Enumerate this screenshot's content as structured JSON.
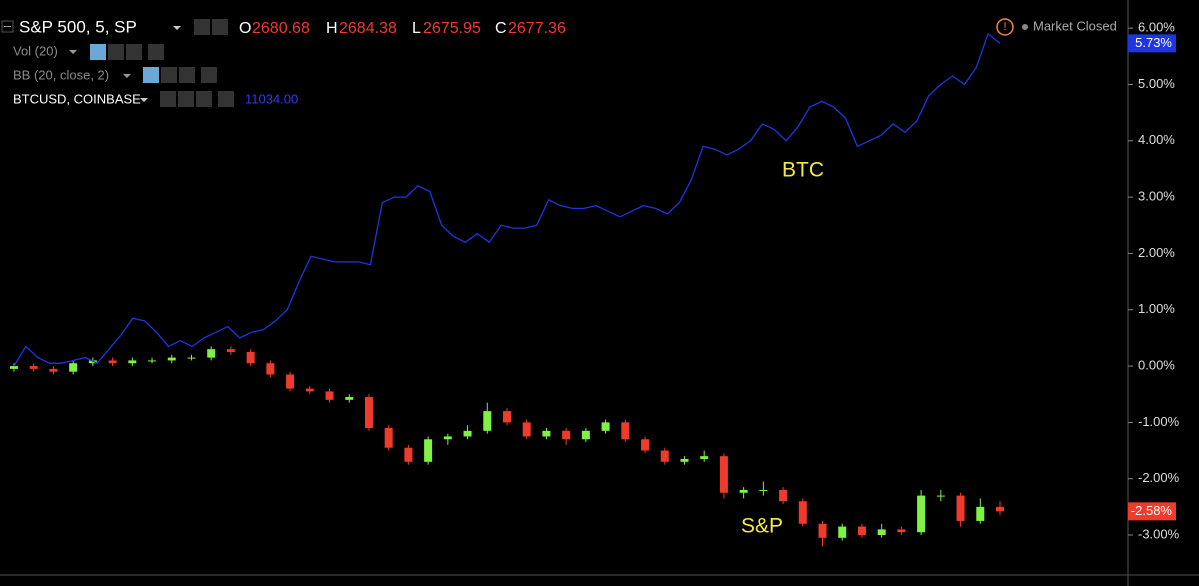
{
  "header": {
    "symbol": "S&P 500, 5, SP",
    "open_label": "O",
    "open": "2680.68",
    "high_label": "H",
    "high": "2684.38",
    "low_label": "L",
    "low": "2675.95",
    "close_label": "C",
    "close": "2677.36",
    "vol": "Vol (20)",
    "bb": "BB (20, close, 2)",
    "compare": "BTCUSD, COINBASE",
    "compare_value": "11034.00",
    "status": "Market Closed"
  },
  "chart_data": {
    "type": "candlestick",
    "ylim": [
      -3.71,
      6.5
    ],
    "yticks": [
      {
        "value": 6,
        "label": "6.00%"
      },
      {
        "value": 5,
        "label": "5.00%"
      },
      {
        "value": 4,
        "label": "4.00%"
      },
      {
        "value": 3,
        "label": "3.00%"
      },
      {
        "value": 2,
        "label": "2.00%"
      },
      {
        "value": 1,
        "label": "1.00%"
      },
      {
        "value": 0,
        "label": "0.00%"
      },
      {
        "value": -1,
        "label": "-1.00%"
      },
      {
        "value": -2,
        "label": "-2.00%"
      },
      {
        "value": -3,
        "label": "-3.00%"
      }
    ],
    "candles": {
      "up_color": "#7ff243",
      "down_color": "#ef3b2c",
      "open": [
        -0.05,
        0.0,
        -0.05,
        -0.1,
        0.05,
        0.1,
        0.05,
        0.1,
        0.1,
        0.15,
        0.15,
        0.3,
        0.25,
        0.05,
        -0.15,
        -0.4,
        -0.45,
        -0.6,
        -0.55,
        -1.1,
        -1.45,
        -1.7,
        -1.3,
        -1.25,
        -1.15,
        -0.8,
        -1.0,
        -1.25,
        -1.15,
        -1.3,
        -1.15,
        -1.0,
        -1.3,
        -1.5,
        -1.7,
        -1.65,
        -1.6,
        -2.25,
        -2.2,
        -2.2,
        -2.4,
        -2.8,
        -3.05,
        -2.85,
        -3.0,
        -2.9,
        -2.95,
        -2.3,
        -2.3,
        -2.75,
        -2.5
      ],
      "high": [
        0.05,
        0.05,
        0,
        0.1,
        0.15,
        0.15,
        0.15,
        0.15,
        0.2,
        0.2,
        0.35,
        0.35,
        0.3,
        0.1,
        -0.1,
        -0.35,
        -0.4,
        -0.5,
        -0.5,
        -1.05,
        -1.4,
        -1.25,
        -1.2,
        -1.05,
        -0.65,
        -0.75,
        -0.95,
        -1.1,
        -1.1,
        -1.1,
        -0.95,
        -0.95,
        -1.25,
        -1.45,
        -1.6,
        -1.5,
        -1.55,
        -2.15,
        -2.05,
        -2.15,
        -2.35,
        -2.75,
        -2.8,
        -2.8,
        -2.8,
        -2.85,
        -2.2,
        -2.2,
        -2.25,
        -2.35,
        -2.4
      ],
      "low": [
        -0.1,
        -0.1,
        -0.15,
        -0.15,
        0,
        0,
        0,
        0.05,
        0.05,
        0.1,
        0.1,
        0.2,
        0,
        -0.2,
        -0.45,
        -0.5,
        -0.65,
        -0.65,
        -1.15,
        -1.5,
        -1.75,
        -1.75,
        -1.4,
        -1.3,
        -1.2,
        -1.05,
        -1.3,
        -1.3,
        -1.4,
        -1.35,
        -1.2,
        -1.35,
        -1.55,
        -1.75,
        -1.75,
        -1.7,
        -2.35,
        -2.35,
        -2.3,
        -2.45,
        -2.85,
        -3.2,
        -3.1,
        -3.05,
        -3.05,
        -3.0,
        -3.0,
        -2.4,
        -2.85,
        -2.8,
        -2.65
      ],
      "close": [
        0.0,
        -0.05,
        -0.1,
        0.05,
        0.1,
        0.05,
        0.1,
        0.1,
        0.15,
        0.15,
        0.3,
        0.25,
        0.05,
        -0.15,
        -0.4,
        -0.45,
        -0.6,
        -0.55,
        -1.1,
        -1.45,
        -1.7,
        -1.3,
        -1.25,
        -1.15,
        -0.8,
        -1.0,
        -1.25,
        -1.15,
        -1.3,
        -1.15,
        -1.0,
        -1.3,
        -1.5,
        -1.7,
        -1.65,
        -1.6,
        -2.25,
        -2.2,
        -2.2,
        -2.4,
        -2.8,
        -3.05,
        -2.85,
        -3.0,
        -2.9,
        -2.95,
        -2.3,
        -2.3,
        -2.75,
        -2.5,
        -2.58
      ]
    },
    "line": {
      "color": "#1f35e0",
      "values": [
        0.0,
        0.35,
        0.15,
        0.05,
        0.05,
        0.1,
        0.15,
        0.05,
        0.3,
        0.55,
        0.85,
        0.8,
        0.6,
        0.35,
        0.45,
        0.35,
        0.5,
        0.6,
        0.7,
        0.5,
        0.6,
        0.65,
        0.8,
        1.0,
        1.5,
        1.95,
        1.9,
        1.85,
        1.85,
        1.85,
        1.8,
        2.9,
        3.0,
        3.0,
        3.2,
        3.1,
        2.5,
        2.3,
        2.2,
        2.35,
        2.2,
        2.5,
        2.45,
        2.45,
        2.5,
        2.95,
        2.85,
        2.8,
        2.8,
        2.85,
        2.75,
        2.65,
        2.75,
        2.85,
        2.8,
        2.7,
        2.9,
        3.3,
        3.9,
        3.85,
        3.75,
        3.85,
        4.0,
        4.3,
        4.2,
        4.0,
        4.25,
        4.6,
        4.7,
        4.6,
        4.4,
        3.9,
        4.0,
        4.1,
        4.3,
        4.15,
        4.35,
        4.8,
        5.0,
        5.15,
        5.0,
        5.3,
        5.9,
        5.73
      ]
    },
    "annotations": [
      {
        "text": "BTC"
      },
      {
        "text": "S&P"
      }
    ],
    "last_labels": [
      {
        "value": 5.73,
        "label": "5.73%",
        "color": "#1f35e0"
      },
      {
        "value": -2.58,
        "label": "-2.58%",
        "color": "#ef3b2c"
      }
    ]
  }
}
